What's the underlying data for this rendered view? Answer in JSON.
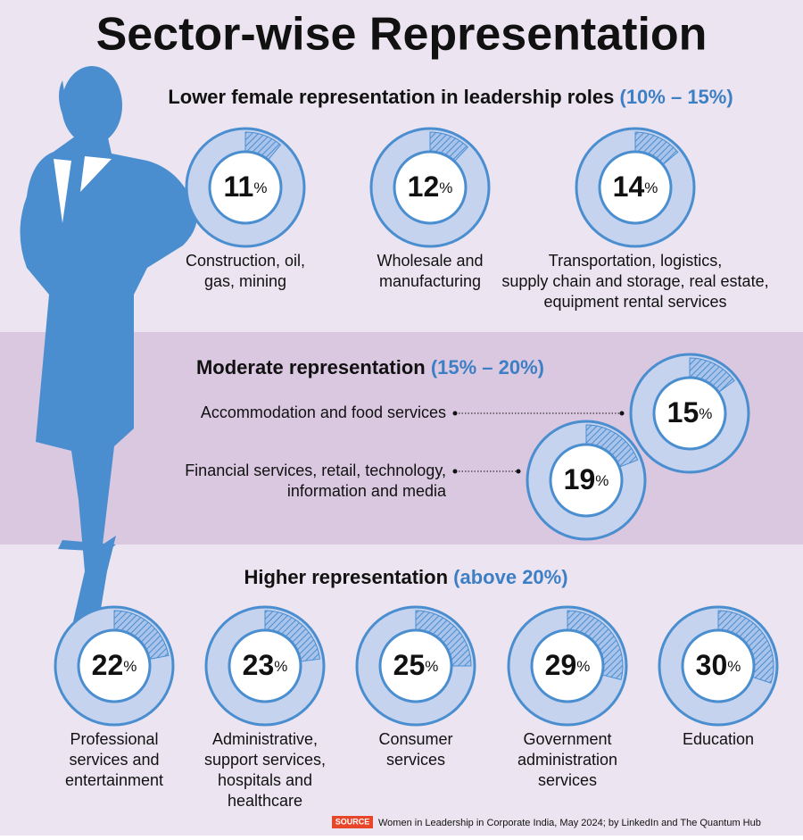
{
  "title": "Sector-wise Representation",
  "percent_sign": "%",
  "sections": [
    {
      "heading": "Lower female representation in leadership roles",
      "range": "(10% – 15%)",
      "items": [
        {
          "label_lines": [
            "Construction, oil,",
            "gas, mining"
          ],
          "value": 11
        },
        {
          "label_lines": [
            "Wholesale and",
            "manufacturing"
          ],
          "value": 12
        },
        {
          "label_lines": [
            "Transportation, logistics,",
            "supply chain and storage, real estate,",
            "equipment rental services"
          ],
          "value": 14
        }
      ]
    },
    {
      "heading": "Moderate representation",
      "range": "(15% – 20%)",
      "items": [
        {
          "label_lines": [
            "Accommodation and food services"
          ],
          "value": 15
        },
        {
          "label_lines": [
            "Financial services, retail, technology,",
            "information and media"
          ],
          "value": 19
        }
      ]
    },
    {
      "heading": "Higher representation",
      "range": "(above 20%)",
      "items": [
        {
          "label_lines": [
            "Professional",
            "services and",
            "entertainment"
          ],
          "value": 22
        },
        {
          "label_lines": [
            "Administrative,",
            "support services,",
            "hospitals and",
            "healthcare"
          ],
          "value": 23
        },
        {
          "label_lines": [
            "Consumer",
            "services"
          ],
          "value": 25
        },
        {
          "label_lines": [
            "Government",
            "administration",
            "services"
          ],
          "value": 29
        },
        {
          "label_lines": [
            "Education"
          ],
          "value": 30
        }
      ]
    }
  ],
  "source": {
    "tag": "SOURCE",
    "text": "Women in Leadership in Corporate India, May 2024; by LinkedIn and The Quantum Hub"
  }
}
